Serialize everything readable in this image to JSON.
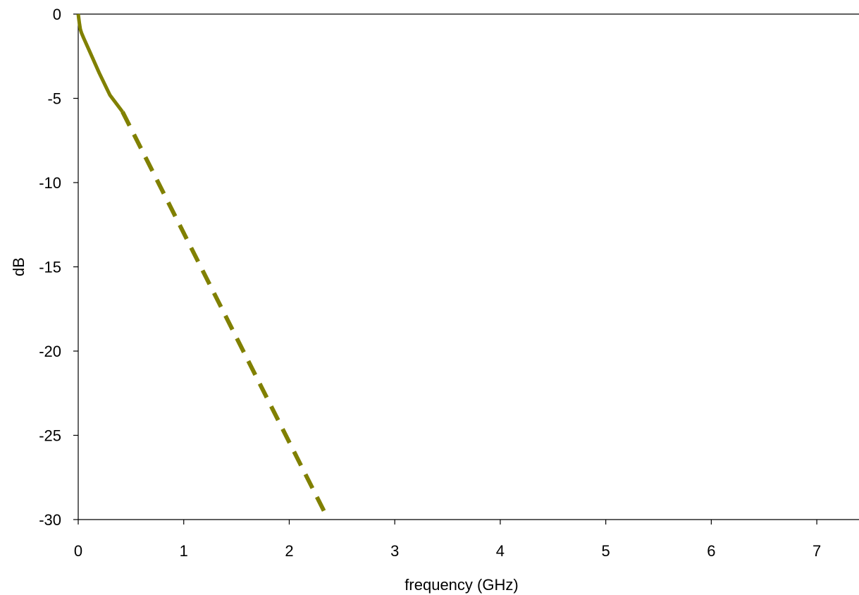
{
  "chart_data": {
    "type": "line",
    "title": "",
    "xlabel": "frequency (GHz)",
    "ylabel": "dB",
    "xlim": [
      0,
      7.4
    ],
    "ylim": [
      -30,
      0
    ],
    "x_ticks": [
      0,
      1,
      2,
      3,
      4,
      5,
      6,
      7
    ],
    "y_ticks": [
      0,
      -5,
      -10,
      -15,
      -20,
      -25,
      -30
    ],
    "x_tick_labels": [
      "0",
      "1",
      "2",
      "3",
      "4",
      "5",
      "6",
      "7"
    ],
    "y_tick_labels": [
      "0",
      "-5",
      "-10",
      "-15",
      "-20",
      "-25",
      "-30"
    ],
    "grid": false,
    "legend": "none",
    "color": "#808000",
    "series": [
      {
        "style": "solid",
        "x": [
          0.0,
          0.01,
          0.02,
          0.03,
          0.05,
          0.1,
          0.2,
          0.3,
          0.42
        ],
        "y": [
          0.0,
          -0.5,
          -0.9,
          -1.1,
          -1.4,
          -2.1,
          -3.5,
          -4.8,
          -5.8
        ]
      },
      {
        "style": "dashed",
        "x": [
          0.42,
          2.37
        ],
        "y": [
          -5.8,
          -30.0
        ]
      }
    ]
  }
}
